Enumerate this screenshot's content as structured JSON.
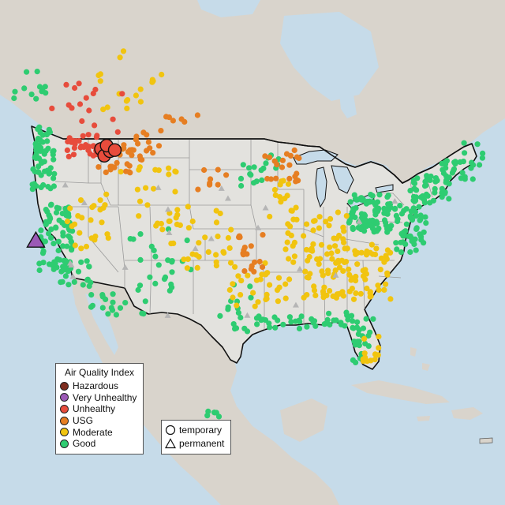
{
  "colors": {
    "ocean": "#c6dbe9",
    "land_us": "#e3e2de",
    "land_other": "#d9d4cc",
    "mountain": "#cbc4b8",
    "boundary": "#111111",
    "state_line": "#9a9a9a"
  },
  "legend_aqi": {
    "title": "Air Quality Index",
    "items": [
      {
        "label": "Hazardous",
        "color": "#7e2d1f"
      },
      {
        "label": "Very Unhealthy",
        "color": "#9b59b6"
      },
      {
        "label": "Unhealthy",
        "color": "#e74c3c"
      },
      {
        "label": "USG",
        "color": "#e67e22"
      },
      {
        "label": "Moderate",
        "color": "#f1c40f"
      },
      {
        "label": "Good",
        "color": "#2ecc71"
      }
    ]
  },
  "legend_type": {
    "items": [
      {
        "label": "temporary",
        "shape": "circle"
      },
      {
        "label": "permanent",
        "shape": "triangle"
      }
    ]
  },
  "monitors": [
    {
      "category": "Very Unhealthy",
      "type": "permanent",
      "lon": -122.6,
      "lat": 39.9
    },
    {
      "category": "Unhealthy",
      "type": "temporary",
      "lon": -114.6,
      "lat": 48.1
    },
    {
      "category": "Unhealthy",
      "type": "temporary",
      "lon": -114.2,
      "lat": 47.5
    },
    {
      "category": "Unhealthy",
      "type": "temporary",
      "lon": -113.5,
      "lat": 47.9
    },
    {
      "category": "Unhealthy",
      "type": "temporary",
      "lon": -113.9,
      "lat": 48.4
    },
    {
      "category": "Unhealthy",
      "type": "temporary",
      "lon": -112.9,
      "lat": 48.0
    }
  ]
}
